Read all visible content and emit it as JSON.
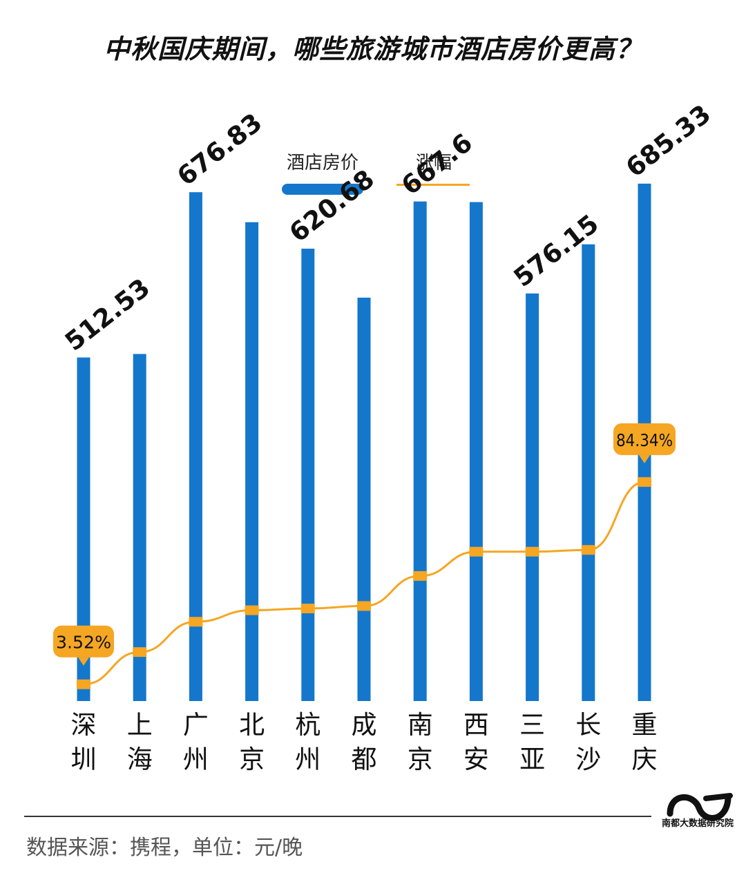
{
  "title": "中秋国庆期间，哪些旅游城市酒店房价更高？",
  "legend": {
    "price_label": "酒店房价",
    "growth_label": "涨幅"
  },
  "colors": {
    "bar": "#1477cc",
    "line": "#f5a623",
    "marker": "#f5a623",
    "callout": "#f5a623"
  },
  "chart_data": {
    "type": "bar",
    "categories": [
      "深圳",
      "上海",
      "广州",
      "北京",
      "杭州",
      "成都",
      "南京",
      "西安",
      "三亚",
      "长沙",
      "重庆"
    ],
    "series": [
      {
        "name": "酒店房价",
        "values": [
          512.53,
          516,
          676.83,
          647,
          620.68,
          572,
          667.6,
          667,
          576.15,
          625,
          685.33
        ]
      },
      {
        "name": "涨幅",
        "type": "line",
        "values": [
          3.52,
          16.4,
          28.5,
          33.1,
          33.8,
          34.8,
          46.8,
          56.5,
          56.5,
          57.2,
          84.34
        ]
      }
    ],
    "bar_labels": [
      "512.53",
      "",
      "676.83",
      "",
      "620.68",
      "",
      "667.6",
      "",
      "576.15",
      "",
      "685.33"
    ],
    "line_callouts": [
      {
        "index": 0,
        "text": "3.52%"
      },
      {
        "index": 10,
        "text": "84.34%"
      }
    ]
  },
  "footer": {
    "source": "数据来源：携程，单位：元/晚",
    "logo_text": "南都大数据研究院"
  }
}
